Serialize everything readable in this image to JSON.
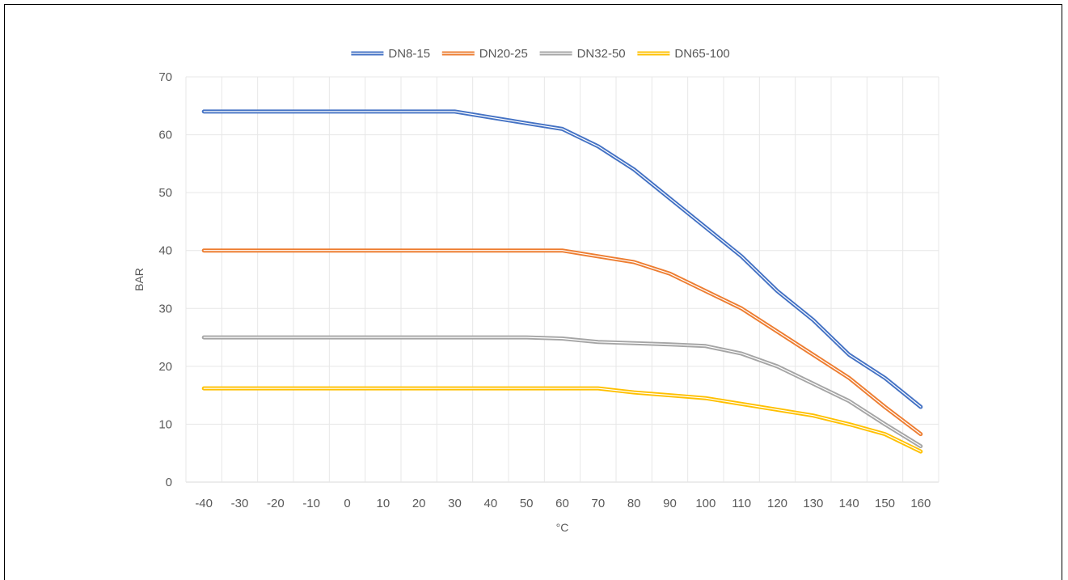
{
  "chart_data": {
    "type": "line",
    "title": "",
    "xlabel": "°C",
    "ylabel": "BAR",
    "x": [
      -40,
      -30,
      -20,
      -10,
      0,
      10,
      20,
      30,
      40,
      50,
      60,
      70,
      80,
      90,
      100,
      110,
      120,
      130,
      140,
      150,
      160
    ],
    "ylim": [
      0,
      70
    ],
    "yticks": [
      0,
      10,
      20,
      30,
      40,
      50,
      60,
      70
    ],
    "grid": true,
    "legend_position": "top",
    "series": [
      {
        "name": "DN8-15",
        "color": "#4472C4",
        "values": [
          64,
          64,
          64,
          64,
          64,
          64,
          64,
          64,
          63,
          62,
          61,
          58,
          54,
          49,
          44,
          39,
          33,
          28,
          22,
          18,
          13
        ]
      },
      {
        "name": "DN20-25",
        "color": "#ED7D31",
        "values": [
          40,
          40,
          40,
          40,
          40,
          40,
          40,
          40,
          40,
          40,
          40,
          39,
          38,
          36,
          33,
          30,
          26,
          22,
          18,
          13,
          8.3
        ]
      },
      {
        "name": "DN32-50",
        "color": "#A5A5A5",
        "values": [
          25,
          25,
          25,
          25,
          25,
          25,
          25,
          25,
          25,
          25,
          24.8,
          24.2,
          24,
          23.8,
          23.5,
          22.2,
          20,
          17,
          14,
          10,
          6.2
        ]
      },
      {
        "name": "DN65-100",
        "color": "#FFC000",
        "values": [
          16.2,
          16.2,
          16.2,
          16.2,
          16.2,
          16.2,
          16.2,
          16.2,
          16.2,
          16.2,
          16.2,
          16.2,
          15.5,
          15,
          14.5,
          13.5,
          12.5,
          11.5,
          10,
          8.3,
          5.3
        ]
      }
    ]
  }
}
